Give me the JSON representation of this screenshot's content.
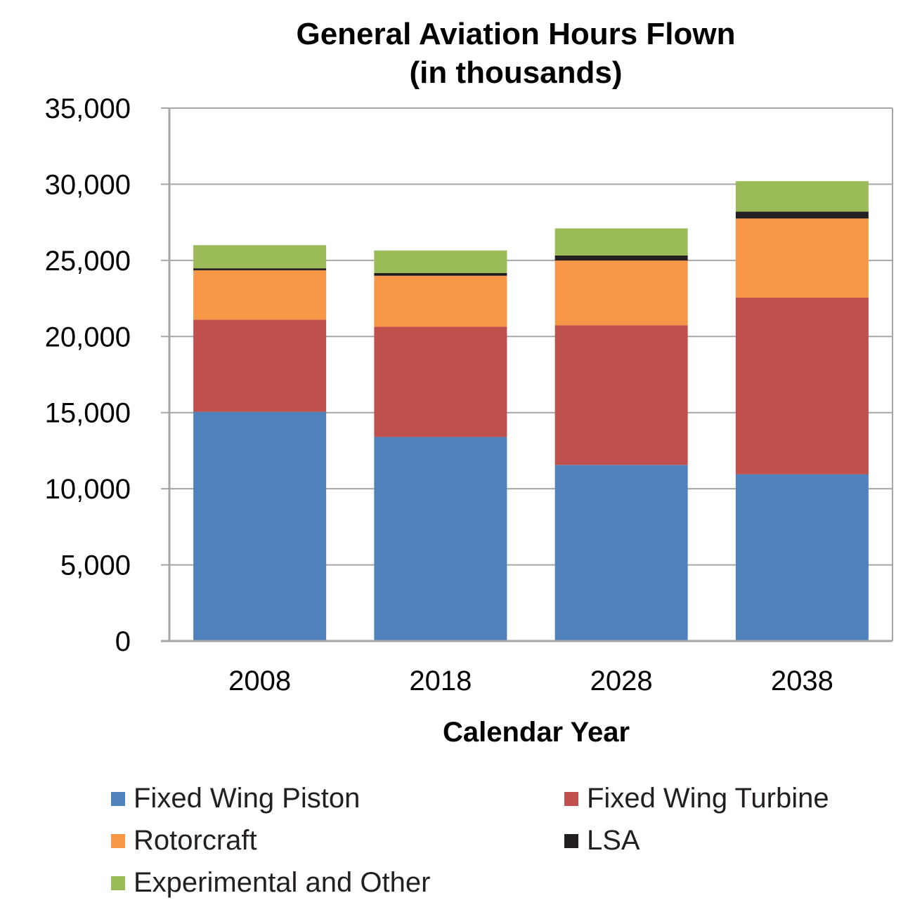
{
  "chart_data": {
    "type": "bar",
    "stacked": true,
    "title": [
      "General Aviation Hours Flown",
      "(in thousands)"
    ],
    "xlabel": "Calendar Year",
    "ylabel": "",
    "ylim": [
      0,
      35000
    ],
    "yticks": [
      0,
      5000,
      10000,
      15000,
      20000,
      25000,
      30000,
      35000
    ],
    "ytick_labels": [
      "0",
      "5,000",
      "10,000",
      "15,000",
      "20,000",
      "25,000",
      "30,000",
      "35,000"
    ],
    "categories": [
      "2008",
      "2018",
      "2028",
      "2038"
    ],
    "grid": "horizontal",
    "legend_position": "bottom",
    "series": [
      {
        "name": "Fixed Wing Piston",
        "color": "#4f81bd",
        "values": [
          15050,
          13400,
          11560,
          10950
        ]
      },
      {
        "name": "Fixed Wing Turbine",
        "color": "#c0504d",
        "values": [
          6050,
          7240,
          9180,
          11600
        ]
      },
      {
        "name": "Rotorcraft",
        "color": "#f79646",
        "values": [
          3250,
          3350,
          4250,
          5200
        ]
      },
      {
        "name": "LSA",
        "color": "#231f20",
        "values": [
          130,
          180,
          330,
          450
        ]
      },
      {
        "name": "Experimental and Other",
        "color": "#9bbb59",
        "values": [
          1520,
          1480,
          1780,
          2000
        ]
      }
    ]
  }
}
